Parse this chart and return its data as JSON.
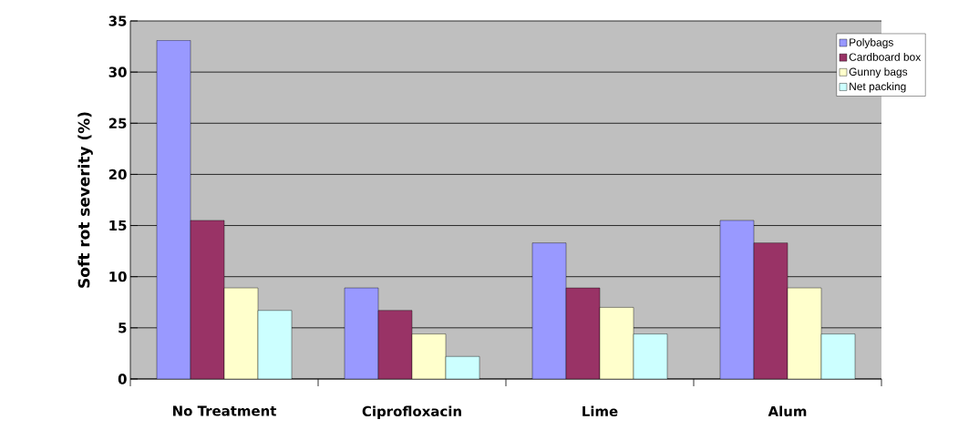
{
  "chart_data": {
    "type": "bar",
    "ylabel": "Soft rot severity (%)",
    "categories": [
      "No Treatment",
      "Ciprofloxacin",
      "Lime",
      "Alum"
    ],
    "series": [
      {
        "name": "Polybags",
        "color": "#9999ff",
        "values": [
          33.1,
          8.9,
          13.3,
          15.5
        ]
      },
      {
        "name": "Cardboard box",
        "color": "#993366",
        "values": [
          15.5,
          6.7,
          8.9,
          13.3
        ]
      },
      {
        "name": "Gunny bags",
        "color": "#ffffcc",
        "values": [
          8.9,
          4.4,
          7.0,
          8.9
        ]
      },
      {
        "name": "Net packing",
        "color": "#ccffff",
        "values": [
          6.7,
          2.2,
          4.4,
          4.4
        ]
      }
    ],
    "ylim": [
      0,
      35
    ],
    "yticks": [
      0,
      5,
      10,
      15,
      20,
      25,
      30,
      35
    ],
    "grid": "y",
    "legend": "top right"
  }
}
